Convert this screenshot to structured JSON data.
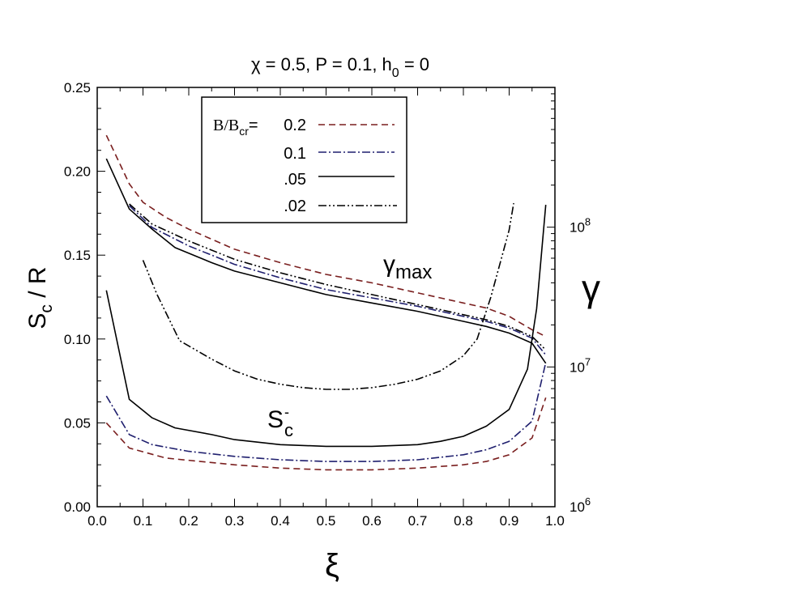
{
  "chart_data": {
    "type": "line",
    "title": "χ = 0.5, P = 0.1, h",
    "title_sub": "0",
    "title_tail": " = 0",
    "xlabel": "ξ",
    "ylabel_main": "S",
    "ylabel_sub": "c",
    "ylabel_tail": " / R",
    "y2label": "γ",
    "xlim": [
      0.0,
      1.0
    ],
    "ylim": [
      0.0,
      0.25
    ],
    "y2lim": [
      1000000,
      1000000000
    ],
    "y2scale": "log",
    "x_ticks": [
      "0.0",
      "0.1",
      "0.2",
      "0.3",
      "0.4",
      "0.5",
      "0.6",
      "0.7",
      "0.8",
      "0.9",
      "1.0"
    ],
    "y_ticks": [
      "0.00",
      "0.05",
      "0.10",
      "0.15",
      "0.20",
      "0.25"
    ],
    "y2_ticks": [
      {
        "base": "10",
        "exp": "6",
        "value": 1000000
      },
      {
        "base": "10",
        "exp": "7",
        "value": 10000000
      },
      {
        "base": "10",
        "exp": "8",
        "value": 100000000
      }
    ],
    "annotations": {
      "gamma_max": {
        "text": "γ",
        "sub": "max"
      },
      "s_minus": {
        "text": "S",
        "sup": "-",
        "sub": "c"
      }
    },
    "legend": {
      "placement": "top-left",
      "header_label": "B/B",
      "header_sub": "cr",
      "header_eq": "= ",
      "entries": [
        "0.2",
        "0.1",
        ".05",
        ".02"
      ]
    },
    "series": [
      {
        "name": "0.2",
        "color": "#7a1f1f",
        "dash": "8,5",
        "s_minus": [
          [
            0.02,
            0.05
          ],
          [
            0.07,
            0.035
          ],
          [
            0.15,
            0.029
          ],
          [
            0.3,
            0.025
          ],
          [
            0.4,
            0.023
          ],
          [
            0.5,
            0.022
          ],
          [
            0.6,
            0.022
          ],
          [
            0.7,
            0.023
          ],
          [
            0.8,
            0.025
          ],
          [
            0.85,
            0.027
          ],
          [
            0.9,
            0.031
          ],
          [
            0.95,
            0.041
          ],
          [
            0.98,
            0.065
          ]
        ],
        "gamma_max": [
          [
            0.02,
            0.2215
          ],
          [
            0.07,
            0.1925
          ],
          [
            0.1,
            0.1815
          ],
          [
            0.15,
            0.1725
          ],
          [
            0.2,
            0.1655
          ],
          [
            0.3,
            0.1535
          ],
          [
            0.4,
            0.1455
          ],
          [
            0.5,
            0.1385
          ],
          [
            0.6,
            0.1335
          ],
          [
            0.7,
            0.1275
          ],
          [
            0.8,
            0.1215
          ],
          [
            0.85,
            0.1185
          ],
          [
            0.9,
            0.1135
          ],
          [
            0.95,
            0.1055
          ],
          [
            0.98,
            0.1015
          ]
        ]
      },
      {
        "name": "0.1",
        "color": "#1f1f6e",
        "dash": "10,3,2,3",
        "s_minus": [
          [
            0.02,
            0.066
          ],
          [
            0.07,
            0.043
          ],
          [
            0.12,
            0.037
          ],
          [
            0.2,
            0.033
          ],
          [
            0.3,
            0.03
          ],
          [
            0.4,
            0.028
          ],
          [
            0.5,
            0.027
          ],
          [
            0.6,
            0.027
          ],
          [
            0.7,
            0.028
          ],
          [
            0.8,
            0.031
          ],
          [
            0.85,
            0.034
          ],
          [
            0.9,
            0.039
          ],
          [
            0.95,
            0.051
          ],
          [
            0.98,
            0.086
          ]
        ],
        "gamma_max": [
          [
            0.07,
            0.1795
          ],
          [
            0.12,
            0.1665
          ],
          [
            0.2,
            0.1555
          ],
          [
            0.3,
            0.1445
          ],
          [
            0.4,
            0.1365
          ],
          [
            0.5,
            0.1295
          ],
          [
            0.6,
            0.1245
          ],
          [
            0.7,
            0.1195
          ],
          [
            0.8,
            0.1135
          ],
          [
            0.85,
            0.1105
          ],
          [
            0.9,
            0.1065
          ],
          [
            0.95,
            0.1005
          ],
          [
            0.98,
            0.0905
          ]
        ]
      },
      {
        "name": ".05",
        "color": "#000000",
        "dash": "",
        "s_minus": [
          [
            0.02,
            0.129
          ],
          [
            0.07,
            0.064
          ],
          [
            0.12,
            0.053
          ],
          [
            0.17,
            0.047
          ],
          [
            0.25,
            0.043
          ],
          [
            0.3,
            0.04
          ],
          [
            0.4,
            0.037
          ],
          [
            0.5,
            0.036
          ],
          [
            0.55,
            0.036
          ],
          [
            0.6,
            0.036
          ],
          [
            0.7,
            0.037
          ],
          [
            0.75,
            0.039
          ],
          [
            0.8,
            0.042
          ],
          [
            0.85,
            0.048
          ],
          [
            0.9,
            0.058
          ],
          [
            0.94,
            0.082
          ],
          [
            0.96,
            0.118
          ],
          [
            0.98,
            0.18
          ]
        ],
        "gamma_max": [
          [
            0.02,
            0.2075
          ],
          [
            0.07,
            0.1775
          ],
          [
            0.12,
            0.1655
          ],
          [
            0.17,
            0.1545
          ],
          [
            0.25,
            0.1455
          ],
          [
            0.3,
            0.1405
          ],
          [
            0.4,
            0.1335
          ],
          [
            0.5,
            0.1265
          ],
          [
            0.6,
            0.1215
          ],
          [
            0.7,
            0.1165
          ],
          [
            0.8,
            0.1105
          ],
          [
            0.85,
            0.1075
          ],
          [
            0.9,
            0.1035
          ],
          [
            0.95,
            0.0975
          ],
          [
            0.98,
            0.0855
          ]
        ]
      },
      {
        "name": ".02",
        "color": "#000000",
        "dash": "10,3,2,3,2,3",
        "s_minus": [
          [
            0.1,
            0.147
          ],
          [
            0.13,
            0.127
          ],
          [
            0.18,
            0.099
          ],
          [
            0.25,
            0.088
          ],
          [
            0.3,
            0.081
          ],
          [
            0.35,
            0.076
          ],
          [
            0.4,
            0.073
          ],
          [
            0.45,
            0.071
          ],
          [
            0.5,
            0.07
          ],
          [
            0.55,
            0.07
          ],
          [
            0.6,
            0.071
          ],
          [
            0.65,
            0.073
          ],
          [
            0.7,
            0.076
          ],
          [
            0.75,
            0.081
          ],
          [
            0.8,
            0.09
          ],
          [
            0.83,
            0.1
          ],
          [
            0.86,
            0.125
          ],
          [
            0.88,
            0.145
          ],
          [
            0.9,
            0.165
          ],
          [
            0.91,
            0.181
          ]
        ],
        "gamma_max": [
          [
            0.07,
            0.1805
          ],
          [
            0.12,
            0.1685
          ],
          [
            0.2,
            0.1585
          ],
          [
            0.3,
            0.1475
          ],
          [
            0.4,
            0.1395
          ],
          [
            0.5,
            0.1325
          ],
          [
            0.6,
            0.1265
          ],
          [
            0.7,
            0.1205
          ],
          [
            0.8,
            0.1145
          ],
          [
            0.85,
            0.1115
          ],
          [
            0.9,
            0.1075
          ],
          [
            0.95,
            0.1015
          ],
          [
            0.98,
            0.0935
          ]
        ]
      }
    ]
  }
}
